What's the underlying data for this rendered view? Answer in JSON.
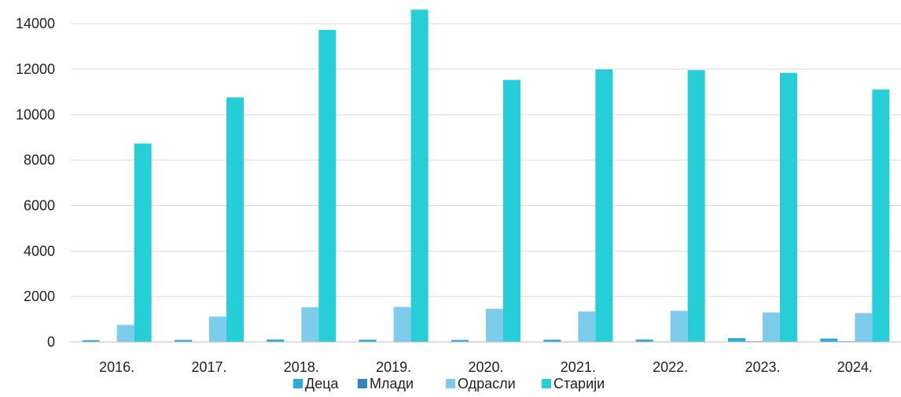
{
  "chart_data": {
    "type": "bar",
    "categories": [
      "2016.",
      "2017.",
      "2018.",
      "2019.",
      "2020.",
      "2021.",
      "2022.",
      "2023.",
      "2024."
    ],
    "series": [
      {
        "name": "Деца",
        "color": "#29ABE2",
        "values": [
          80,
          90,
          110,
          100,
          90,
          100,
          110,
          170,
          150
        ]
      },
      {
        "name": "Млади",
        "color": "#2E86C8",
        "values": [
          10,
          10,
          10,
          10,
          20,
          20,
          20,
          30,
          30
        ]
      },
      {
        "name": "Одрасли",
        "color": "#7ECCEC",
        "values": [
          750,
          1120,
          1530,
          1540,
          1460,
          1340,
          1370,
          1300,
          1270
        ]
      },
      {
        "name": "Старији",
        "color": "#26CED8",
        "values": [
          8730,
          10760,
          13730,
          14620,
          11530,
          11990,
          11960,
          11840,
          11110
        ]
      }
    ],
    "y_ticks": [
      "0",
      "2000",
      "4000",
      "6000",
      "8000",
      "10000",
      "12000",
      "14000"
    ],
    "ylim": [
      0,
      14700
    ],
    "grid": true,
    "legend_position": "bottom",
    "title": "",
    "xlabel": "",
    "ylabel": ""
  }
}
